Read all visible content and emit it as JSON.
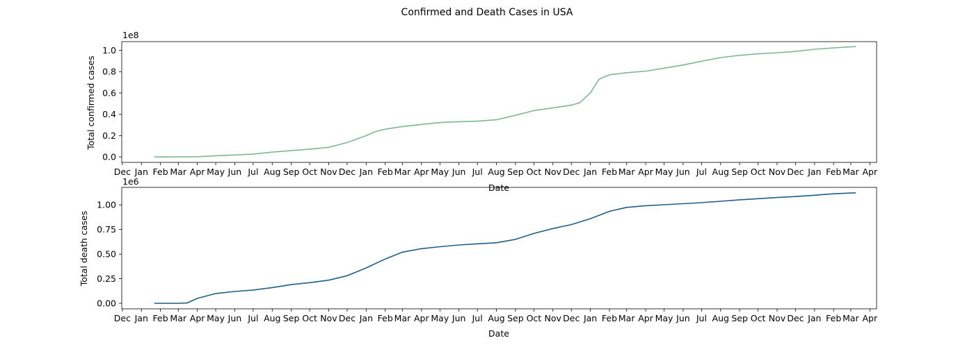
{
  "figure": {
    "suptitle": "Confirmed and Death Cases in USA"
  },
  "chart_data": [
    {
      "type": "line",
      "ylabel": "Total confirmed cases",
      "xlabel": "Date",
      "offset_text": "1e8",
      "line_color": "#7cb891",
      "xlim": [
        "2019-11-30",
        "2023-04-12"
      ],
      "ylim": [
        -0.0515,
        1.0815
      ],
      "yticks": [
        0.0,
        0.2,
        0.4,
        0.6,
        0.8,
        1.0
      ],
      "ytick_labels": [
        "0.0",
        "0.2",
        "0.4",
        "0.6",
        "0.8",
        "1.0"
      ],
      "xticks": [
        "2019-12-01",
        "2020-01-01",
        "2020-02-01",
        "2020-03-01",
        "2020-04-01",
        "2020-05-01",
        "2020-06-01",
        "2020-07-01",
        "2020-08-01",
        "2020-09-01",
        "2020-10-01",
        "2020-11-01",
        "2020-12-01",
        "2021-01-01",
        "2021-02-01",
        "2021-03-01",
        "2021-04-01",
        "2021-05-01",
        "2021-06-01",
        "2021-07-01",
        "2021-08-01",
        "2021-09-01",
        "2021-10-01",
        "2021-11-01",
        "2021-12-01",
        "2022-01-01",
        "2022-02-01",
        "2022-03-01",
        "2022-04-01",
        "2022-05-01",
        "2022-06-01",
        "2022-07-01",
        "2022-08-01",
        "2022-09-01",
        "2022-10-01",
        "2022-11-01",
        "2022-12-01",
        "2023-01-01",
        "2023-02-01",
        "2023-03-01",
        "2023-04-01"
      ],
      "xtick_labels": [
        "Dec",
        "Jan",
        "Feb",
        "Mar",
        "Apr",
        "May",
        "Jun",
        "Jul",
        "Aug",
        "Sep",
        "Oct",
        "Nov",
        "Dec",
        "Jan",
        "Feb",
        "Mar",
        "Apr",
        "May",
        "Jun",
        "Jul",
        "Aug",
        "Sep",
        "Oct",
        "Nov",
        "Dec",
        "Jan",
        "Feb",
        "Mar",
        "Apr",
        "May",
        "Jun",
        "Jul",
        "Aug",
        "Sep",
        "Oct",
        "Nov",
        "Dec",
        "Jan",
        "Feb",
        "Mar",
        "Apr"
      ],
      "series": [
        {
          "x": [
            "2020-01-22",
            "2020-03-01",
            "2020-04-01",
            "2020-05-01",
            "2020-06-01",
            "2020-07-01",
            "2020-08-01",
            "2020-09-01",
            "2020-10-01",
            "2020-11-01",
            "2020-12-01",
            "2021-01-01",
            "2021-01-15",
            "2021-02-01",
            "2021-03-01",
            "2021-04-01",
            "2021-05-01",
            "2021-06-01",
            "2021-07-01",
            "2021-08-01",
            "2021-09-01",
            "2021-10-01",
            "2021-11-01",
            "2021-12-01",
            "2021-12-15",
            "2022-01-01",
            "2022-01-15",
            "2022-02-01",
            "2022-03-01",
            "2022-04-01",
            "2022-05-01",
            "2022-06-01",
            "2022-07-01",
            "2022-08-01",
            "2022-09-01",
            "2022-10-01",
            "2022-11-01",
            "2022-12-01",
            "2023-01-01",
            "2023-02-01",
            "2023-03-09"
          ],
          "y": [
            0.0,
            0.0,
            0.002,
            0.011,
            0.018,
            0.026,
            0.045,
            0.06,
            0.073,
            0.09,
            0.135,
            0.2,
            0.235,
            0.26,
            0.285,
            0.305,
            0.322,
            0.33,
            0.335,
            0.348,
            0.39,
            0.435,
            0.46,
            0.485,
            0.51,
            0.6,
            0.73,
            0.77,
            0.79,
            0.805,
            0.832,
            0.862,
            0.898,
            0.932,
            0.953,
            0.967,
            0.977,
            0.99,
            1.01,
            1.023,
            1.035
          ]
        }
      ]
    },
    {
      "type": "line",
      "ylabel": "Total death cases",
      "xlabel": "Date",
      "offset_text": "1e6",
      "line_color": "#1f5f87",
      "xlim": [
        "2019-11-30",
        "2023-04-12"
      ],
      "ylim": [
        -0.0561,
        1.178
      ],
      "yticks": [
        0.0,
        0.25,
        0.5,
        0.75,
        1.0
      ],
      "ytick_labels": [
        "0.00",
        "0.25",
        "0.50",
        "0.75",
        "1.00"
      ],
      "xticks": [
        "2019-12-01",
        "2020-01-01",
        "2020-02-01",
        "2020-03-01",
        "2020-04-01",
        "2020-05-01",
        "2020-06-01",
        "2020-07-01",
        "2020-08-01",
        "2020-09-01",
        "2020-10-01",
        "2020-11-01",
        "2020-12-01",
        "2021-01-01",
        "2021-02-01",
        "2021-03-01",
        "2021-04-01",
        "2021-05-01",
        "2021-06-01",
        "2021-07-01",
        "2021-08-01",
        "2021-09-01",
        "2021-10-01",
        "2021-11-01",
        "2021-12-01",
        "2022-01-01",
        "2022-02-01",
        "2022-03-01",
        "2022-04-01",
        "2022-05-01",
        "2022-06-01",
        "2022-07-01",
        "2022-08-01",
        "2022-09-01",
        "2022-10-01",
        "2022-11-01",
        "2022-12-01",
        "2023-01-01",
        "2023-02-01",
        "2023-03-01",
        "2023-04-01"
      ],
      "xtick_labels": [
        "Dec",
        "Jan",
        "Feb",
        "Mar",
        "Apr",
        "May",
        "Jun",
        "Jul",
        "Aug",
        "Sep",
        "Oct",
        "Nov",
        "Dec",
        "Jan",
        "Feb",
        "Mar",
        "Apr",
        "May",
        "Jun",
        "Jul",
        "Aug",
        "Sep",
        "Oct",
        "Nov",
        "Dec",
        "Jan",
        "Feb",
        "Mar",
        "Apr",
        "May",
        "Jun",
        "Jul",
        "Aug",
        "Sep",
        "Oct",
        "Nov",
        "Dec",
        "Jan",
        "Feb",
        "Mar",
        "Apr"
      ],
      "series": [
        {
          "x": [
            "2020-01-22",
            "2020-03-01",
            "2020-03-15",
            "2020-04-01",
            "2020-05-01",
            "2020-06-01",
            "2020-07-01",
            "2020-08-01",
            "2020-09-01",
            "2020-10-01",
            "2020-11-01",
            "2020-12-01",
            "2021-01-01",
            "2021-02-01",
            "2021-03-01",
            "2021-04-01",
            "2021-05-01",
            "2021-06-01",
            "2021-07-01",
            "2021-08-01",
            "2021-09-01",
            "2021-10-01",
            "2021-11-01",
            "2021-12-01",
            "2022-01-01",
            "2022-02-01",
            "2022-03-01",
            "2022-04-01",
            "2022-05-01",
            "2022-06-01",
            "2022-07-01",
            "2022-08-01",
            "2022-09-01",
            "2022-10-01",
            "2022-11-01",
            "2022-12-01",
            "2023-01-01",
            "2023-02-01",
            "2023-03-09"
          ],
          "y": [
            0.0,
            0.0,
            0.003,
            0.05,
            0.1,
            0.12,
            0.135,
            0.16,
            0.19,
            0.21,
            0.235,
            0.28,
            0.36,
            0.45,
            0.52,
            0.555,
            0.575,
            0.593,
            0.605,
            0.615,
            0.65,
            0.71,
            0.76,
            0.8,
            0.86,
            0.935,
            0.975,
            0.992,
            1.002,
            1.012,
            1.023,
            1.037,
            1.052,
            1.063,
            1.075,
            1.085,
            1.098,
            1.113,
            1.123
          ]
        }
      ]
    }
  ]
}
